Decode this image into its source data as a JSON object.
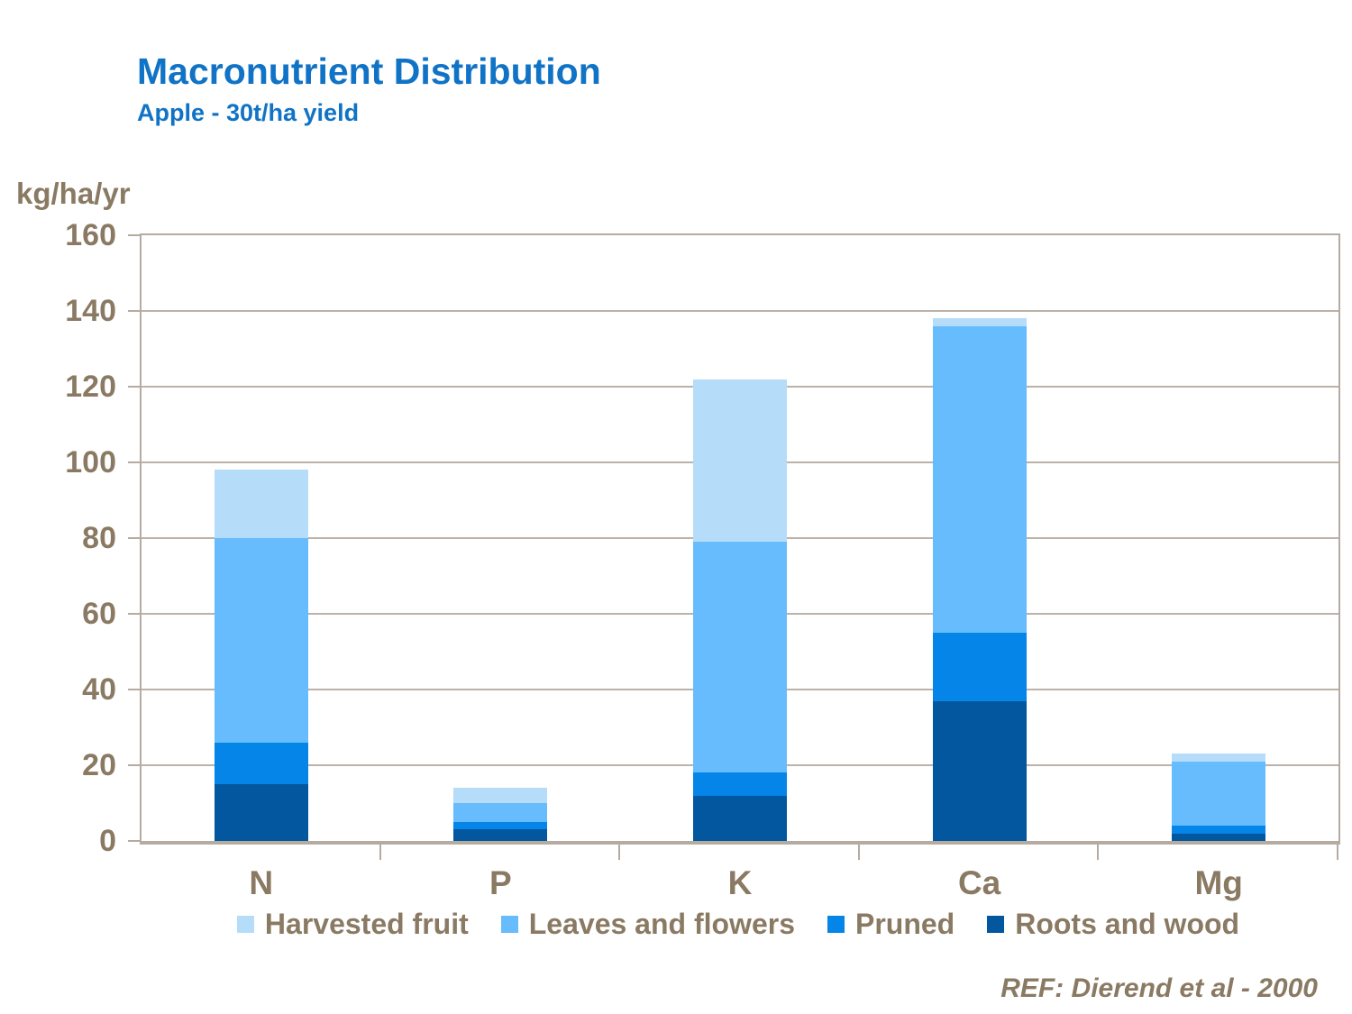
{
  "header": {
    "title": "Macronutrient Distribution",
    "subtitle": "Apple - 30t/ha yield"
  },
  "footer": {
    "reference": "REF: Dierend et al - 2000"
  },
  "colors": {
    "title_blue": "#1073C6",
    "label_brown": "#8A7A63",
    "axis_line": "#B5ABA0",
    "gridline": "#BCB2A7"
  },
  "chart_data": {
    "type": "bar",
    "stacked": true,
    "title": "Macronutrient Distribution",
    "subtitle": "Apple - 30t/ha yield",
    "ylabel": "kg/ha/yr",
    "xlabel": "",
    "ylim": [
      0,
      160
    ],
    "yticks": [
      0,
      20,
      40,
      60,
      80,
      100,
      120,
      140,
      160
    ],
    "grid": true,
    "legend_position": "bottom",
    "stack_order": "last series at bottom, first series on top",
    "categories": [
      "N",
      "P",
      "K",
      "Ca",
      "Mg"
    ],
    "series": [
      {
        "name": "Harvested fruit",
        "color": "#B5DDFA",
        "values": [
          18,
          4,
          43,
          2,
          2
        ]
      },
      {
        "name": "Leaves and flowers",
        "color": "#66BCFC",
        "values": [
          54,
          5,
          61,
          81,
          17
        ]
      },
      {
        "name": "Pruned",
        "color": "#0585E8",
        "values": [
          11,
          2,
          6,
          18,
          2
        ]
      },
      {
        "name": "Roots and wood",
        "color": "#02579E",
        "values": [
          15,
          3,
          12,
          37,
          2
        ]
      }
    ]
  }
}
